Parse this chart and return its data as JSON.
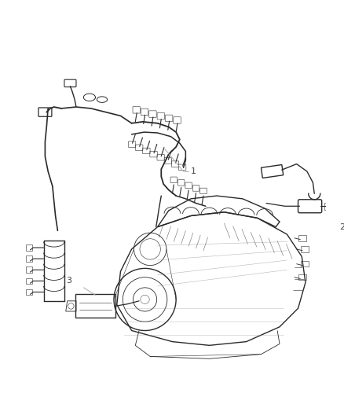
{
  "background_color": "#ffffff",
  "figure_width": 4.38,
  "figure_height": 5.33,
  "dpi": 100,
  "line_color": "#aaaaaa",
  "line_width": 0.7,
  "label_fontsize": 8,
  "label_color": "#444444",
  "draw_color": "#2a2a2a",
  "light_color": "#888888",
  "mid_color": "#555555"
}
